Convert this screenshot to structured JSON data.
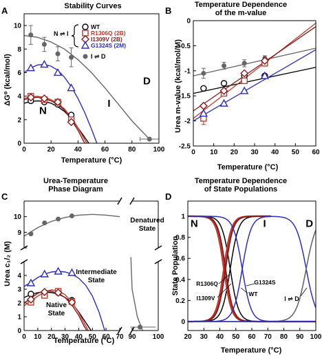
{
  "colors": {
    "wt": "#000000",
    "r1306q": "#c0392b",
    "i1309v": "#8b1a1a",
    "g1324s": "#2b2bc8",
    "unfold": "#666666"
  },
  "chart_data": [
    {
      "panel": "A",
      "type": "line",
      "title": "Stability Curves",
      "xlabel": "Temperature (°C)",
      "ylabel": "ΔG⁰ (kcal/mol)",
      "xlim": [
        0,
        100
      ],
      "ylim": [
        0,
        11
      ],
      "xticks": [
        0,
        20,
        40,
        60,
        80,
        100
      ],
      "yticks": [
        0,
        2,
        4,
        6,
        8,
        10
      ],
      "legend": {
        "bracket_label": "N ⇌ I",
        "bottom_label": "I ⇌ D",
        "entries": [
          {
            "key": "wt",
            "label": "WT",
            "marker": "circle"
          },
          {
            "key": "r1306q",
            "label": "R1306Q (2B)",
            "marker": "square"
          },
          {
            "key": "i1309v",
            "label": "I1309V (2B)",
            "marker": "diamond"
          },
          {
            "key": "g1324s",
            "label": "G1324S (2M)",
            "marker": "triangle"
          },
          {
            "key": "unfold",
            "label": "",
            "marker": "dot"
          }
        ]
      },
      "region_labels": [
        {
          "text": "N",
          "x": 14,
          "y": 2.5
        },
        {
          "text": "I",
          "x": 63,
          "y": 3.1
        },
        {
          "text": "D",
          "x": 91,
          "y": 5.0
        }
      ],
      "series": [
        {
          "key": "unfold",
          "marker": "dot",
          "points": [
            [
              5,
              9.2
            ],
            [
              15,
              8.4
            ],
            [
              25,
              7.6
            ],
            [
              35,
              7.3
            ],
            [
              93,
              0.35
            ]
          ],
          "errors": [
            0.8,
            0.6,
            0.6,
            0.8,
            0.15
          ],
          "curve": [
            [
              0,
              9.15
            ],
            [
              10,
              9.0
            ],
            [
              20,
              8.6
            ],
            [
              30,
              8.0
            ],
            [
              40,
              7.1
            ],
            [
              50,
              6.0
            ],
            [
              60,
              4.7
            ],
            [
              70,
              3.3
            ],
            [
              80,
              1.9
            ],
            [
              90,
              0.7
            ],
            [
              94,
              0.2
            ]
          ]
        },
        {
          "key": "g1324s",
          "marker": "triangle",
          "points": [
            [
              5,
              6.4
            ],
            [
              15,
              6.7
            ],
            [
              25,
              6.0
            ],
            [
              35,
              4.7
            ]
          ],
          "curve": [
            [
              0,
              6.0
            ],
            [
              5,
              6.4
            ],
            [
              10,
              6.65
            ],
            [
              15,
              6.7
            ],
            [
              20,
              6.55
            ],
            [
              25,
              6.2
            ],
            [
              30,
              5.6
            ],
            [
              35,
              4.8
            ],
            [
              40,
              3.8
            ],
            [
              45,
              2.6
            ],
            [
              50,
              1.2
            ],
            [
              54,
              0.0
            ]
          ]
        },
        {
          "key": "wt",
          "marker": "circle",
          "points": [
            [
              5,
              3.6
            ],
            [
              15,
              3.5
            ],
            [
              25,
              3.3
            ],
            [
              35,
              2.4
            ]
          ],
          "curve": [
            [
              0,
              3.4
            ],
            [
              5,
              3.55
            ],
            [
              10,
              3.6
            ],
            [
              15,
              3.55
            ],
            [
              20,
              3.4
            ],
            [
              25,
              3.1
            ],
            [
              30,
              2.7
            ],
            [
              35,
              2.1
            ],
            [
              40,
              1.3
            ],
            [
              45,
              0.5
            ],
            [
              48,
              0.0
            ]
          ]
        },
        {
          "key": "r1306q",
          "marker": "square",
          "points": [
            [
              5,
              4.0
            ],
            [
              15,
              3.7
            ],
            [
              25,
              3.5
            ],
            [
              35,
              2.0
            ]
          ],
          "curve": [
            [
              0,
              3.8
            ],
            [
              5,
              3.95
            ],
            [
              10,
              3.98
            ],
            [
              15,
              3.9
            ],
            [
              20,
              3.7
            ],
            [
              25,
              3.4
            ],
            [
              30,
              2.9
            ],
            [
              35,
              2.2
            ],
            [
              40,
              1.3
            ],
            [
              45,
              0.3
            ],
            [
              46.5,
              0.0
            ]
          ]
        },
        {
          "key": "i1309v",
          "marker": "diamond",
          "points": [
            [
              5,
              3.9
            ],
            [
              15,
              3.8
            ],
            [
              25,
              3.5
            ],
            [
              35,
              1.8
            ]
          ],
          "curve": [
            [
              0,
              3.7
            ],
            [
              5,
              3.85
            ],
            [
              10,
              3.9
            ],
            [
              15,
              3.8
            ],
            [
              20,
              3.6
            ],
            [
              25,
              3.3
            ],
            [
              30,
              2.8
            ],
            [
              35,
              2.0
            ],
            [
              40,
              1.1
            ],
            [
              44,
              0.2
            ],
            [
              45,
              0.0
            ]
          ]
        }
      ]
    },
    {
      "panel": "B",
      "type": "line",
      "title": "Temperature Dependence\nof the m-value",
      "xlabel": "Temperature (°C)",
      "ylabel": "Urea m-value (kcal/mol/M)",
      "xlim": [
        0,
        60
      ],
      "ylim": [
        -2.5,
        0
      ],
      "xticks": [
        0,
        10,
        20,
        30,
        40,
        50,
        60
      ],
      "yticks": [
        -2.5,
        -2,
        -1.5,
        -1,
        -0.5,
        0
      ],
      "series": [
        {
          "key": "unfold",
          "marker": "dot",
          "points": [
            [
              5,
              -1.05
            ],
            [
              15,
              -0.9
            ],
            [
              25,
              -0.85
            ],
            [
              35,
              -0.75
            ]
          ],
          "errors": [
            0.1,
            0.07,
            0.07,
            0.05
          ],
          "line": [
            [
              0,
              -1.1
            ],
            [
              60,
              -0.55
            ]
          ]
        },
        {
          "key": "wt",
          "marker": "circle",
          "points": [
            [
              5,
              -1.35
            ],
            [
              15,
              -1.25
            ],
            [
              25,
              -1.1
            ],
            [
              35,
              -1.1
            ]
          ],
          "line": [
            [
              0,
              -1.45
            ],
            [
              60,
              -0.93
            ]
          ]
        },
        {
          "key": "r1306q",
          "marker": "square",
          "points": [
            [
              5,
              -1.95
            ],
            [
              15,
              -1.45
            ],
            [
              25,
              -1.2
            ],
            [
              35,
              -0.85
            ]
          ],
          "errors": [
            0.12,
            0.04,
            0.04,
            0.04
          ],
          "line": [
            [
              0,
              -1.95
            ],
            [
              60,
              -0.05
            ]
          ]
        },
        {
          "key": "i1309v",
          "marker": "diamond",
          "points": [
            [
              5,
              -1.7
            ],
            [
              15,
              -1.4
            ],
            [
              25,
              -1.05
            ],
            [
              35,
              -0.8
            ]
          ],
          "line": [
            [
              0,
              -1.8
            ],
            [
              60,
              -0.12
            ]
          ]
        },
        {
          "key": "g1324s",
          "marker": "triangle",
          "points": [
            [
              5,
              -1.85
            ],
            [
              15,
              -1.65
            ],
            [
              25,
              -1.4
            ],
            [
              35,
              -1.1
            ]
          ],
          "line": [
            [
              0,
              -2.0
            ],
            [
              60,
              -0.58
            ]
          ]
        }
      ]
    },
    {
      "panel": "C",
      "type": "line",
      "title": "Urea-Temperature\nPhase Diagram",
      "xlabel": "Temperature (°C)",
      "ylabel": "Urea c₁/₂ (M)",
      "x_segments": [
        [
          0,
          70
        ],
        [
          90,
          100
        ]
      ],
      "y_segments": [
        [
          0,
          5
        ],
        [
          8,
          11
        ]
      ],
      "xticks": [
        0,
        10,
        20,
        30,
        40,
        50,
        60,
        70,
        90,
        100
      ],
      "yticks": [
        0,
        1,
        2,
        3,
        4,
        8,
        9,
        10
      ],
      "yticks_labeled": [
        0,
        1,
        2,
        3,
        4,
        9,
        10
      ],
      "region_labels": [
        {
          "text": "Denatured\nState"
        },
        {
          "text": "Intermediate\nState"
        },
        {
          "text": "Native\nState"
        }
      ],
      "series": [
        {
          "key": "unfold",
          "marker": "dot",
          "points": [
            [
              5,
              8.9
            ],
            [
              15,
              9.6
            ],
            [
              25,
              9.85
            ],
            [
              35,
              10.05
            ],
            [
              93,
              0.25
            ]
          ],
          "curve": [
            [
              0,
              8.75
            ],
            [
              10,
              9.3
            ],
            [
              20,
              9.7
            ],
            [
              30,
              9.95
            ],
            [
              40,
              10.1
            ],
            [
              50,
              10.15
            ],
            [
              60,
              10.1
            ],
            [
              70,
              10.0
            ]
          ],
          "tail": [
            [
              88,
              6.0
            ],
            [
              90,
              3.0
            ],
            [
              92,
              1.0
            ],
            [
              94,
              0.0
            ]
          ]
        },
        {
          "key": "g1324s",
          "marker": "triangle",
          "points": [
            [
              5,
              3.45
            ],
            [
              15,
              4.1
            ],
            [
              25,
              4.3
            ],
            [
              35,
              4.2
            ]
          ],
          "curve": [
            [
              0,
              3.2
            ],
            [
              5,
              3.5
            ],
            [
              10,
              3.85
            ],
            [
              15,
              4.1
            ],
            [
              20,
              4.25
            ],
            [
              25,
              4.3
            ],
            [
              30,
              4.25
            ],
            [
              35,
              4.1
            ],
            [
              40,
              3.8
            ],
            [
              45,
              3.3
            ],
            [
              50,
              2.5
            ],
            [
              55,
              1.3
            ],
            [
              59,
              0.0
            ]
          ]
        },
        {
          "key": "wt",
          "marker": "circle",
          "points": [
            [
              5,
              2.65
            ],
            [
              15,
              2.75
            ],
            [
              25,
              2.75
            ],
            [
              35,
              2.2
            ]
          ],
          "curve": [
            [
              0,
              2.4
            ],
            [
              5,
              2.6
            ],
            [
              10,
              2.75
            ],
            [
              15,
              2.8
            ],
            [
              20,
              2.75
            ],
            [
              25,
              2.65
            ],
            [
              30,
              2.4
            ],
            [
              35,
              2.0
            ],
            [
              40,
              1.35
            ],
            [
              45,
              0.6
            ],
            [
              49,
              0.0
            ]
          ]
        },
        {
          "key": "r1306q",
          "marker": "square",
          "points": [
            [
              5,
              2.05
            ],
            [
              15,
              2.55
            ],
            [
              25,
              2.85
            ],
            [
              35,
              2.1
            ]
          ],
          "curve": [
            [
              0,
              1.8
            ],
            [
              5,
              2.15
            ],
            [
              10,
              2.5
            ],
            [
              15,
              2.8
            ],
            [
              20,
              2.95
            ],
            [
              25,
              2.9
            ],
            [
              30,
              2.6
            ],
            [
              35,
              2.05
            ],
            [
              40,
              1.3
            ],
            [
              45,
              0.35
            ],
            [
              47,
              0.0
            ]
          ]
        },
        {
          "key": "i1309v",
          "marker": "diamond",
          "points": [
            [
              5,
              2.25
            ],
            [
              15,
              2.8
            ],
            [
              25,
              2.75
            ],
            [
              35,
              2.05
            ]
          ],
          "curve": [
            [
              0,
              2.0
            ],
            [
              5,
              2.35
            ],
            [
              10,
              2.7
            ],
            [
              15,
              2.9
            ],
            [
              20,
              2.85
            ],
            [
              25,
              2.7
            ],
            [
              30,
              2.4
            ],
            [
              35,
              1.85
            ],
            [
              40,
              1.1
            ],
            [
              44,
              0.3
            ],
            [
              46,
              0.0
            ]
          ]
        }
      ]
    },
    {
      "panel": "D",
      "type": "line",
      "title": "Temperature Dependence\nof State Populations",
      "xlabel": "Temperature (°C)",
      "ylabel": "State Population",
      "xlim": [
        20,
        100
      ],
      "ylim": [
        0,
        1
      ],
      "xticks": [
        20,
        30,
        40,
        50,
        60,
        70,
        80,
        90,
        100
      ],
      "yticks": [
        0,
        0.2,
        0.4,
        0.6,
        0.8,
        1
      ],
      "region_labels": [
        {
          "text": "N",
          "x": 24,
          "y": 0.93
        },
        {
          "text": "I",
          "x": 68,
          "y": 0.93
        },
        {
          "text": "D",
          "x": 96,
          "y": 0.93
        }
      ],
      "annotations": [
        "R1306Q",
        "I1309V",
        "G1324S",
        "WT",
        "I ⇌ D"
      ],
      "series": [
        {
          "key": "wt",
          "name": "WT",
          "type": "sigmoid",
          "midpoint": 46.5,
          "width": 2.6
        },
        {
          "key": "r1306q",
          "name": "R1306Q",
          "type": "sigmoid",
          "midpoint": 42.5,
          "width": 2.4
        },
        {
          "key": "i1309v",
          "name": "I1309V",
          "type": "sigmoid",
          "midpoint": 43.5,
          "width": 2.4
        },
        {
          "key": "g1324s",
          "name": "G1324S",
          "type": "sigmoid",
          "midpoint": 54.0,
          "width": 2.8
        },
        {
          "key": "unfold",
          "name": "I ⇌ D",
          "type": "sigmoid_rise",
          "midpoint": 94.0,
          "width": 3.2
        }
      ]
    }
  ]
}
